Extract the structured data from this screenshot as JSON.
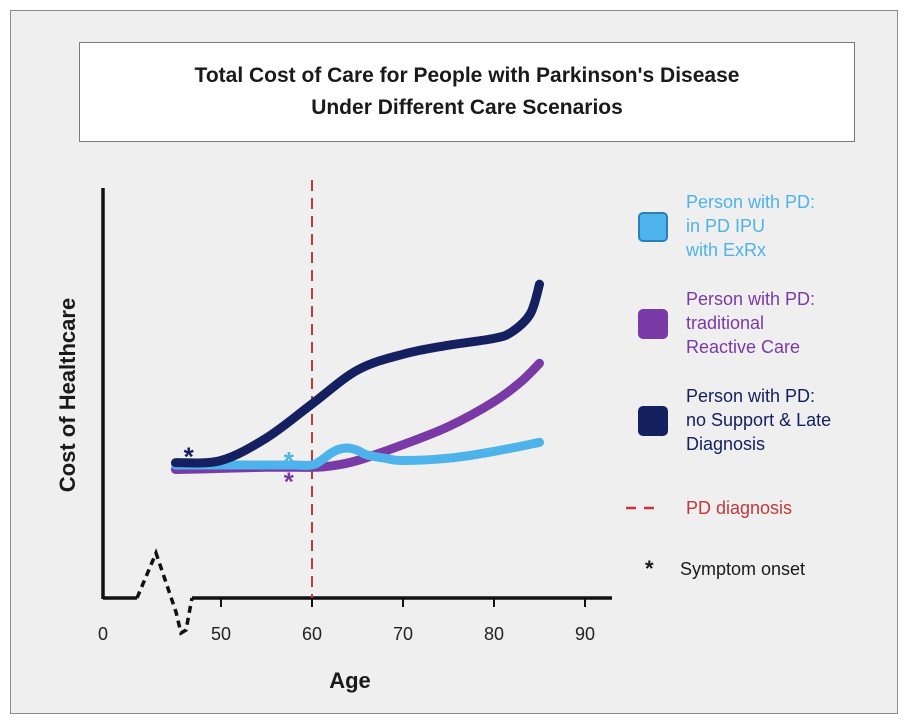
{
  "chart_data": {
    "type": "line",
    "title": "Total Cost of Care for People with Parkinson's Disease",
    "subtitle": "Under Different Care Scenarios",
    "xlabel": "Age",
    "ylabel": "Cost of Healthcare",
    "xlim": [
      0,
      95
    ],
    "ylim": [
      0,
      100
    ],
    "x_ticks": [
      0,
      50,
      60,
      70,
      80,
      90
    ],
    "axis_break": true,
    "legend_position": "right",
    "series": [
      {
        "name": "Person with PD: in PD IPU with ExRx",
        "legend_lines": [
          "Person with PD:",
          "in PD IPU",
          "with ExRx"
        ],
        "color": "#4db3ea",
        "x": [
          45,
          55,
          58,
          60,
          61,
          62,
          63,
          64,
          65,
          66,
          68,
          70,
          75,
          80,
          85
        ],
        "y": [
          33,
          33,
          33,
          33,
          35,
          38,
          40,
          40.5,
          39.5,
          37.5,
          36,
          35,
          36,
          39,
          43
        ],
        "symptom_onset": [
          58,
          36
        ]
      },
      {
        "name": "Person with PD: traditional Reactive Care",
        "legend_lines": [
          "Person with PD:",
          "traditional",
          "Reactive Care"
        ],
        "color": "#7a3aa6",
        "x": [
          45,
          50,
          55,
          60,
          62,
          65,
          70,
          75,
          80,
          83,
          85
        ],
        "y": [
          31,
          31.5,
          32,
          32,
          32.5,
          35,
          42,
          50,
          61,
          70,
          78
        ],
        "symptom_onset": [
          58,
          27
        ]
      },
      {
        "name": "Person with PD: no Support & Late Diagnosis",
        "legend_lines": [
          "Person with PD:",
          "no Support & Late",
          "Diagnosis"
        ],
        "color": "#142060",
        "x": [
          45,
          50,
          55,
          60,
          65,
          70,
          75,
          80,
          82,
          84,
          85
        ],
        "y": [
          34,
          35,
          45,
          60,
          75,
          82,
          86,
          89,
          92,
          100,
          113
        ],
        "symptom_onset": [
          47,
          38
        ]
      }
    ],
    "annotations": [
      {
        "label": "PD diagnosis",
        "type": "vline",
        "x": 60,
        "color": "#c0393b"
      },
      {
        "label": "Symptom onset",
        "symbol": "*",
        "color": "#1a1a1a"
      }
    ]
  }
}
